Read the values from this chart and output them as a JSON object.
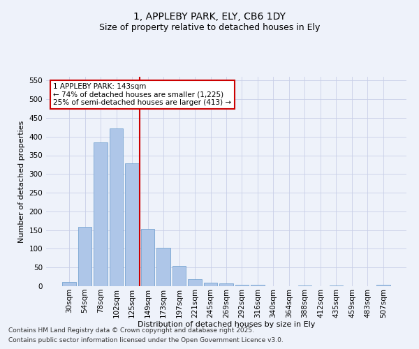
{
  "title": "1, APPLEBY PARK, ELY, CB6 1DY",
  "subtitle": "Size of property relative to detached houses in Ely",
  "xlabel": "Distribution of detached houses by size in Ely",
  "ylabel": "Number of detached properties",
  "categories": [
    "30sqm",
    "54sqm",
    "78sqm",
    "102sqm",
    "125sqm",
    "149sqm",
    "173sqm",
    "197sqm",
    "221sqm",
    "245sqm",
    "269sqm",
    "292sqm",
    "316sqm",
    "340sqm",
    "364sqm",
    "388sqm",
    "412sqm",
    "435sqm",
    "459sqm",
    "483sqm",
    "507sqm"
  ],
  "values": [
    12,
    158,
    385,
    422,
    328,
    153,
    103,
    55,
    18,
    10,
    8,
    4,
    3,
    0,
    0,
    2,
    0,
    1,
    0,
    0,
    3
  ],
  "bar_color": "#aec6e8",
  "bar_edge_color": "#6699cc",
  "vline_x": 4.5,
  "vline_label": "1 APPLEBY PARK: 143sqm",
  "annotation_line1": "← 74% of detached houses are smaller (1,225)",
  "annotation_line2": "25% of semi-detached houses are larger (413) →",
  "annotation_box_color": "#ffffff",
  "annotation_box_edge_color": "#cc0000",
  "ylim": [
    0,
    560
  ],
  "yticks": [
    0,
    50,
    100,
    150,
    200,
    250,
    300,
    350,
    400,
    450,
    500,
    550
  ],
  "footer1": "Contains HM Land Registry data © Crown copyright and database right 2025.",
  "footer2": "Contains public sector information licensed under the Open Government Licence v3.0.",
  "bg_color": "#eef2fa",
  "grid_color": "#c8cfe8",
  "vline_color": "#cc0000",
  "title_fontsize": 10,
  "subtitle_fontsize": 9,
  "axis_label_fontsize": 8,
  "tick_fontsize": 7.5,
  "footer_fontsize": 6.5,
  "annotation_fontsize": 7.5
}
